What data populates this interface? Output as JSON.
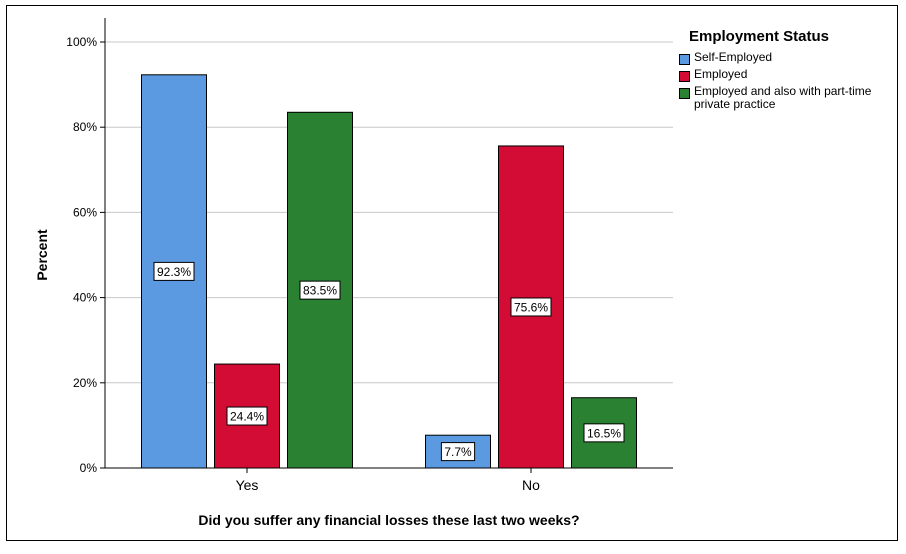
{
  "chart_data": {
    "type": "bar",
    "title": "",
    "xlabel": "Did you suffer any financial losses these last two weeks?",
    "ylabel": "Percent",
    "categories": [
      "Yes",
      "No"
    ],
    "ylim": [
      0,
      100
    ],
    "yticks": [
      "0%",
      "20%",
      "40%",
      "60%",
      "80%",
      "100%"
    ],
    "grid": true,
    "legend_title": "Employment Status",
    "legend_position": "top-right",
    "series": [
      {
        "name": "Self-Employed",
        "color": "#5b9ae0",
        "values": [
          92.3,
          7.7
        ],
        "labels": [
          "92.3%",
          "7.7%"
        ]
      },
      {
        "name": "Employed",
        "color": "#d20c35",
        "values": [
          24.4,
          75.6
        ],
        "labels": [
          "24.4%",
          "75.6%"
        ]
      },
      {
        "name": "Employed and also with part-time private practice",
        "color": "#2a8131",
        "values": [
          83.5,
          16.5
        ],
        "labels": [
          "83.5%",
          "16.5%"
        ]
      }
    ]
  }
}
